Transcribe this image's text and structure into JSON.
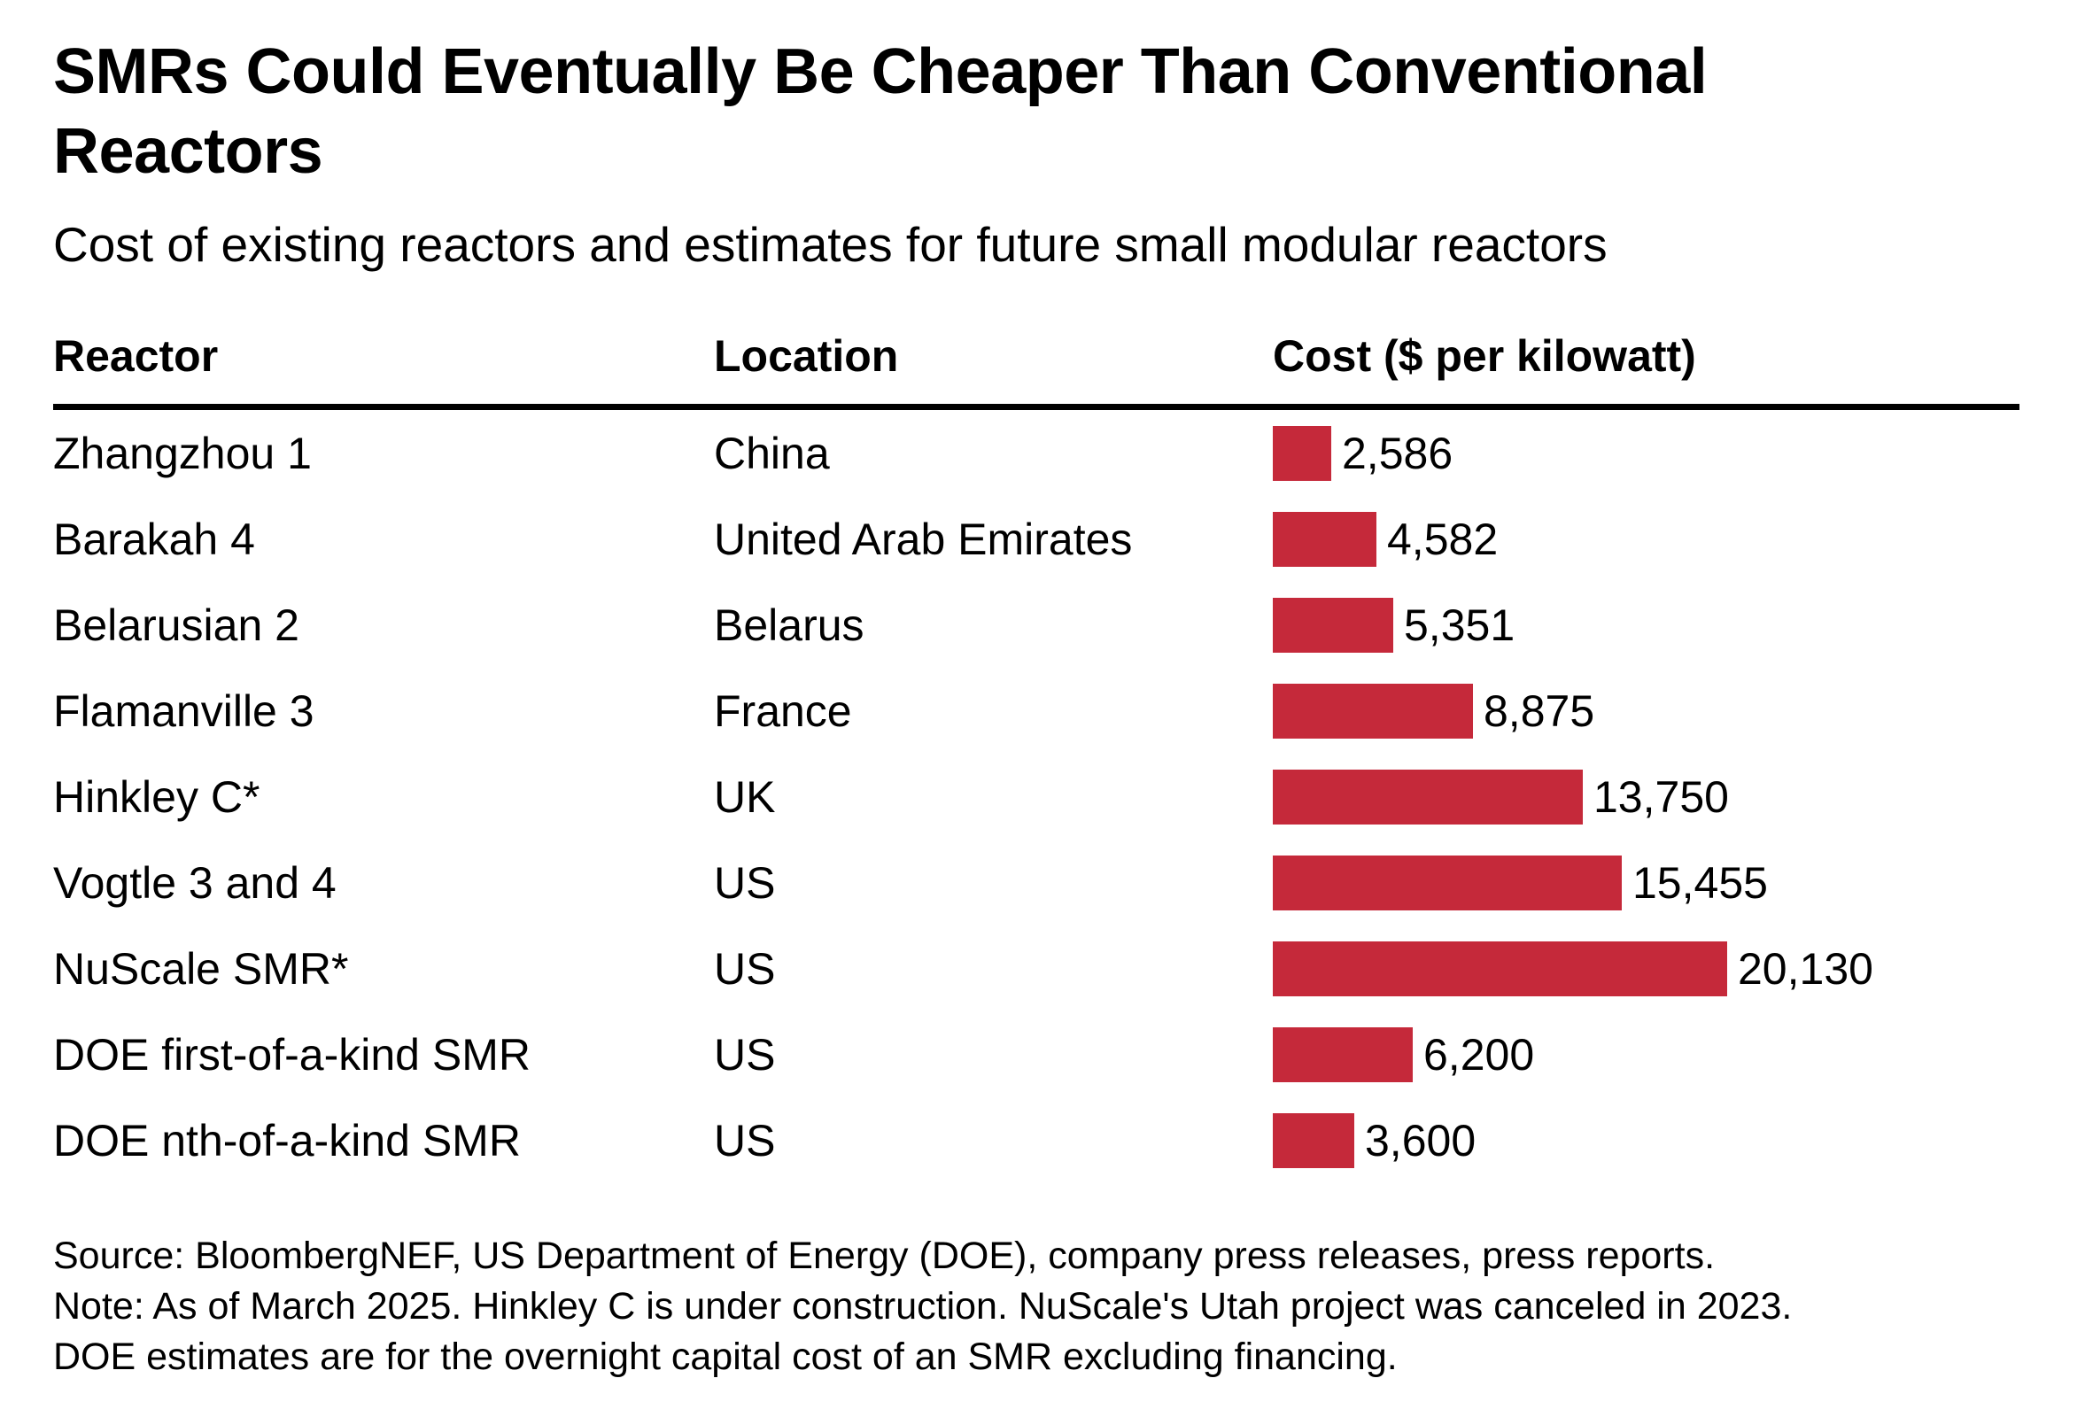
{
  "title": {
    "line1": "SMRs Could Eventually Be Cheaper Than Conventional",
    "line2": "Reactors",
    "full": "SMRs Could Eventually Be Cheaper Than Conventional Reactors"
  },
  "subtitle": "Cost of existing reactors and estimates for future small modular reactors",
  "table": {
    "headers": {
      "reactor": "Reactor",
      "location": "Location",
      "cost": "Cost ($ per kilowatt)"
    },
    "rows": [
      {
        "reactor": "Zhangzhou 1",
        "location": "China",
        "cost_label": "2,586"
      },
      {
        "reactor": "Barakah 4",
        "location": "United Arab Emirates",
        "cost_label": "4,582"
      },
      {
        "reactor": "Belarusian 2",
        "location": "Belarus",
        "cost_label": "5,351"
      },
      {
        "reactor": "Flamanville 3",
        "location": "France",
        "cost_label": "8,875"
      },
      {
        "reactor": "Hinkley C*",
        "location": "UK",
        "cost_label": "13,750"
      },
      {
        "reactor": "Vogtle 3 and 4",
        "location": "US",
        "cost_label": "15,455"
      },
      {
        "reactor": "NuScale SMR*",
        "location": "US",
        "cost_label": "20,130"
      },
      {
        "reactor": "DOE first-of-a-kind SMR",
        "location": "US",
        "cost_label": "6,200"
      },
      {
        "reactor": "DOE nth-of-a-kind SMR",
        "location": "US",
        "cost_label": "3,600"
      }
    ]
  },
  "footer": {
    "source": "Source: BloombergNEF, US Department of Energy (DOE), company press releases, press reports.",
    "note1": "Note: As of March 2025. Hinkley C is under construction. NuScale's Utah project was canceled in 2023.",
    "note2": "DOE estimates are for the overnight capital cost of an SMR excluding financing."
  },
  "colors": {
    "bar": "#c5293a",
    "text": "#000000",
    "rule": "#000000",
    "background": "#ffffff"
  },
  "chart_data": {
    "type": "bar",
    "orientation": "horizontal",
    "title": "SMRs Could Eventually Be Cheaper Than Conventional Reactors",
    "subtitle": "Cost of existing reactors and estimates for future small modular reactors",
    "categories": [
      "Zhangzhou 1",
      "Barakah 4",
      "Belarusian 2",
      "Flamanville 3",
      "Hinkley C*",
      "Vogtle 3 and 4",
      "NuScale SMR*",
      "DOE first-of-a-kind SMR",
      "DOE nth-of-a-kind SMR"
    ],
    "locations": [
      "China",
      "United Arab Emirates",
      "Belarus",
      "France",
      "UK",
      "US",
      "US",
      "US",
      "US"
    ],
    "values": [
      2586,
      4582,
      5351,
      8875,
      13750,
      15455,
      20130,
      6200,
      3600
    ],
    "value_labels": [
      "2,586",
      "4,582",
      "5,351",
      "8,875",
      "13,750",
      "15,455",
      "20,130",
      "6,200",
      "3,600"
    ],
    "xlabel": "Cost ($ per kilowatt)",
    "ylabel": "Reactor",
    "xlim": [
      0,
      20130
    ],
    "grid": false,
    "legend": false,
    "data_labels": "end-of-bar",
    "source": "Source: BloombergNEF, US Department of Energy (DOE), company press releases, press reports.",
    "note": "Note: As of March 2025. Hinkley C is under construction. NuScale's Utah project was canceled in 2023. DOE estimates are for the overnight capital cost of an SMR excluding financing."
  }
}
